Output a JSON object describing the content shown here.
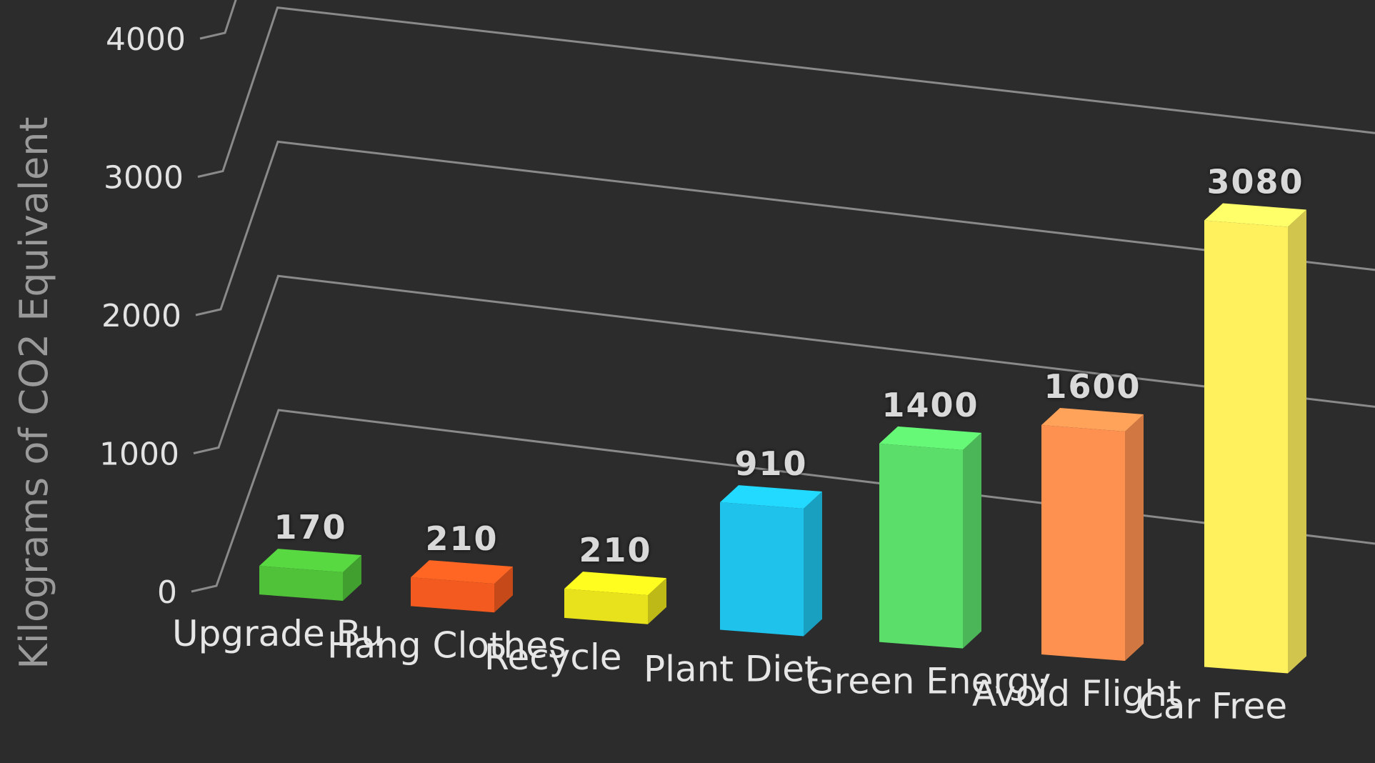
{
  "chart_data": {
    "type": "bar",
    "title": "",
    "xlabel": "",
    "ylabel": "Kilograms of CO2 Equivalent",
    "ylim": [
      0,
      4000
    ],
    "yticks": [
      0,
      1000,
      2000,
      3000,
      4000
    ],
    "grid": true,
    "legend": "none",
    "categories": [
      "Upgrade Bu",
      "Hang Clothes",
      "Recycle",
      "Plant Diet",
      "Green Energy",
      "Avoid Flight",
      "Car Free"
    ],
    "values": [
      170,
      210,
      210,
      910,
      1400,
      1600,
      3080
    ],
    "value_labels": [
      "170",
      "210",
      "210",
      "910",
      "1400",
      "1600",
      "3080"
    ],
    "colors": [
      "#4fc23a",
      "#f25a1f",
      "#e8e21c",
      "#1ec2ea",
      "#5bde6a",
      "#ff9150",
      "#fff05e"
    ]
  }
}
